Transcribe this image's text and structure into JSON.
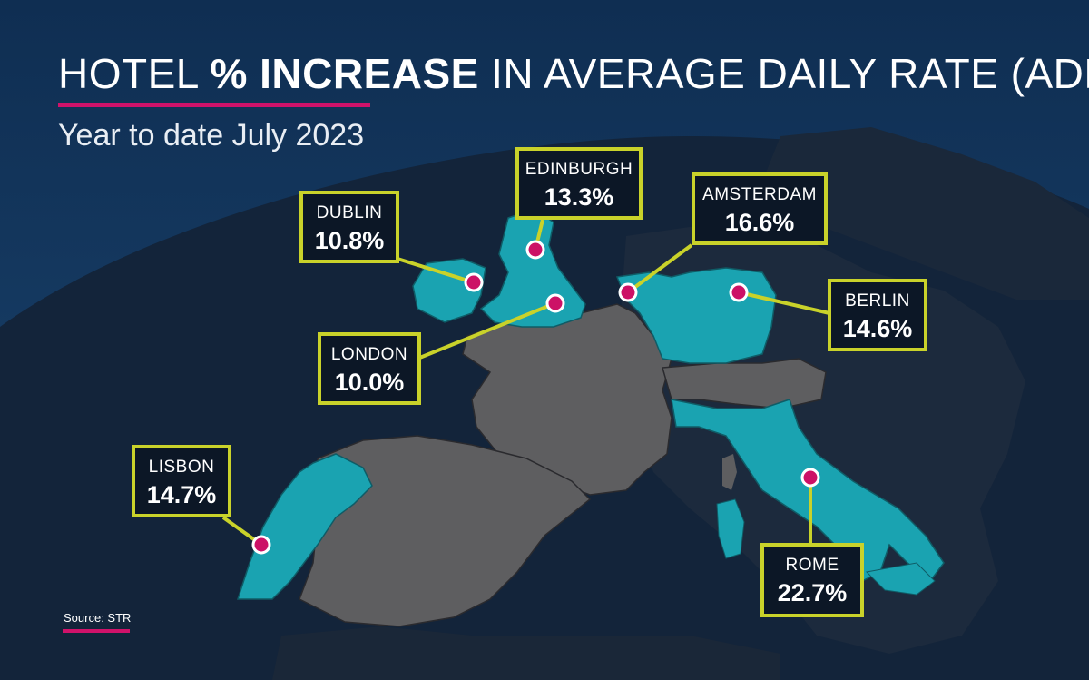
{
  "title": {
    "prefix": "HOTEL ",
    "emphasis": "% INCREASE",
    "suffix": " IN AVERAGE DAILY RATE (ADR)"
  },
  "subtitle": "Year to date July 2023",
  "source": "Source: STR",
  "colors": {
    "background": "#0b1a2e",
    "sky": "#16365a",
    "land_highlight": "#1aa3b1",
    "land_other": "#5e5e60",
    "land_dark": "#1c2a3d",
    "box_border": "#c9d22a",
    "marker": "#cc1166",
    "accent_rule": "#d0126a"
  },
  "cities": [
    {
      "name": "DUBLIN",
      "adr_increase": "10.8%",
      "country": "Ireland"
    },
    {
      "name": "EDINBURGH",
      "adr_increase": "13.3%",
      "country": "United Kingdom"
    },
    {
      "name": "LONDON",
      "adr_increase": "10.0%",
      "country": "United Kingdom"
    },
    {
      "name": "AMSTERDAM",
      "adr_increase": "16.6%",
      "country": "Netherlands"
    },
    {
      "name": "BERLIN",
      "adr_increase": "14.6%",
      "country": "Germany"
    },
    {
      "name": "LISBON",
      "adr_increase": "14.7%",
      "country": "Portugal"
    },
    {
      "name": "ROME",
      "adr_increase": "22.7%",
      "country": "Italy"
    }
  ]
}
